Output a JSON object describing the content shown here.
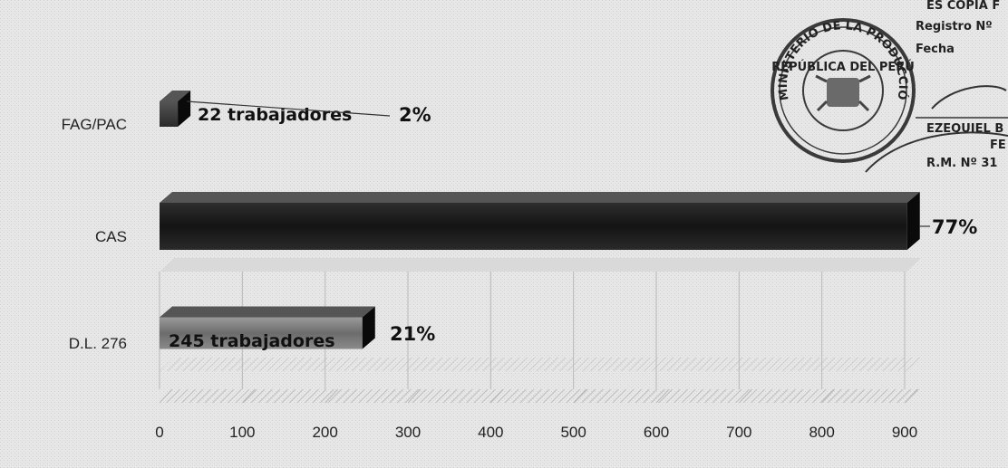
{
  "chart_data": {
    "type": "bar",
    "orientation": "horizontal",
    "categories": [
      "FAG/PAC",
      "CAS",
      "D.L. 276"
    ],
    "values": [
      22,
      903,
      245
    ],
    "data_labels": [
      "22 trabajadores",
      "",
      "245 trabajadores"
    ],
    "percent_labels": [
      "2%",
      "77%",
      "21%"
    ],
    "xlim": [
      0,
      900
    ],
    "xticks": [
      "0",
      "100",
      "200",
      "300",
      "400",
      "500",
      "600",
      "700",
      "800",
      "900"
    ],
    "title": "",
    "xlabel": "",
    "ylabel": "",
    "grid": "vertical",
    "colors": {
      "background": "#e7e7e7",
      "bar_fag": "#3a3a3a",
      "bar_cas": "#1c1c1c",
      "bar_dl": "#7a7a7a",
      "gridline": "#b8b8b8"
    }
  },
  "stamp": {
    "seal_text": "MINISTERIO DE LA PRODUCCIÓN",
    "seal_inner": "REPÚBLICA DEL PERÚ",
    "copy_header": "ES COPIA F",
    "registro": "Registro Nº",
    "fecha": "Fecha",
    "name": "EZEQUIEL B",
    "suffix": "FE",
    "rm": "R.M. Nº 31"
  }
}
